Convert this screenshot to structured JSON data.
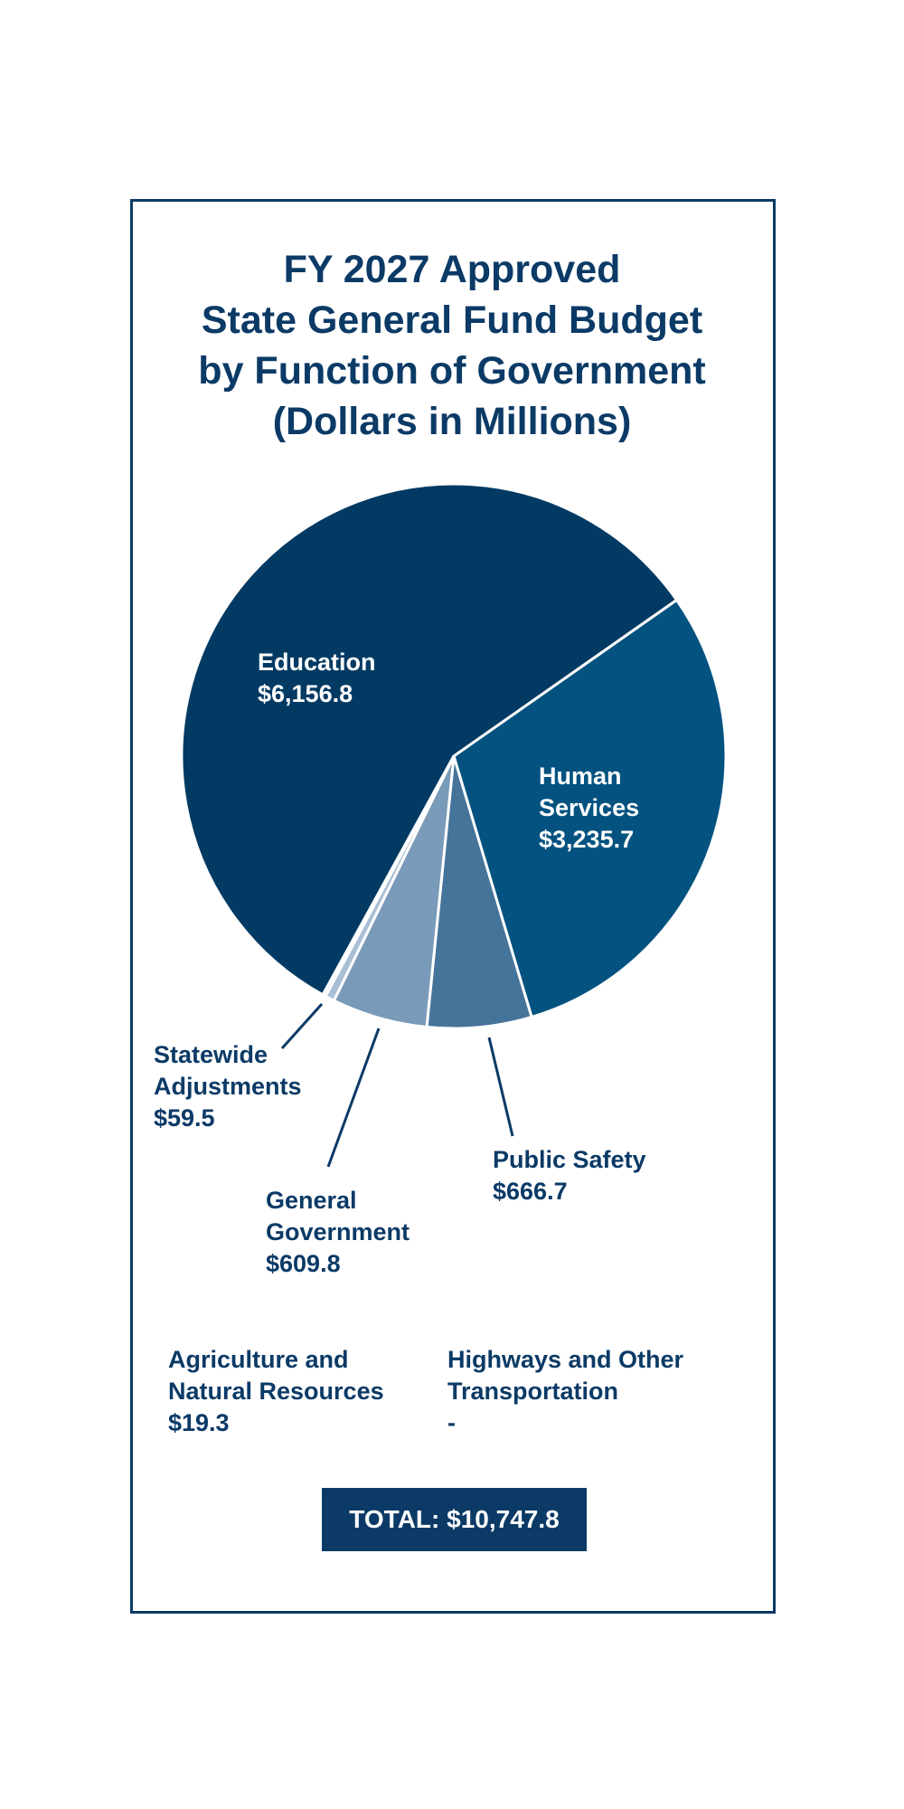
{
  "chart_data": {
    "type": "pie",
    "title": [
      "FY 2027 Approved",
      "State General Fund Budget",
      "by Function of Government",
      "(Dollars in Millions)"
    ],
    "categories": [
      "Education",
      "Human Services",
      "Public Safety",
      "General Government",
      "Statewide Adjustments",
      "Agriculture and Natural Resources",
      "Highways and Other Transportation"
    ],
    "values": [
      6156.8,
      3235.7,
      666.7,
      609.8,
      59.5,
      19.3,
      0
    ],
    "value_labels": [
      "$6,156.8",
      "$3,235.7",
      "$666.7",
      "$609.8",
      "$59.5",
      "$19.3",
      "-"
    ],
    "colors": [
      "#023a63",
      "#03527f",
      "#46739a",
      "#7a9ab9",
      "#a9bfd5",
      "#c9d6e4",
      "#dde6ef"
    ],
    "total": "TOTAL: $10,747.8"
  }
}
